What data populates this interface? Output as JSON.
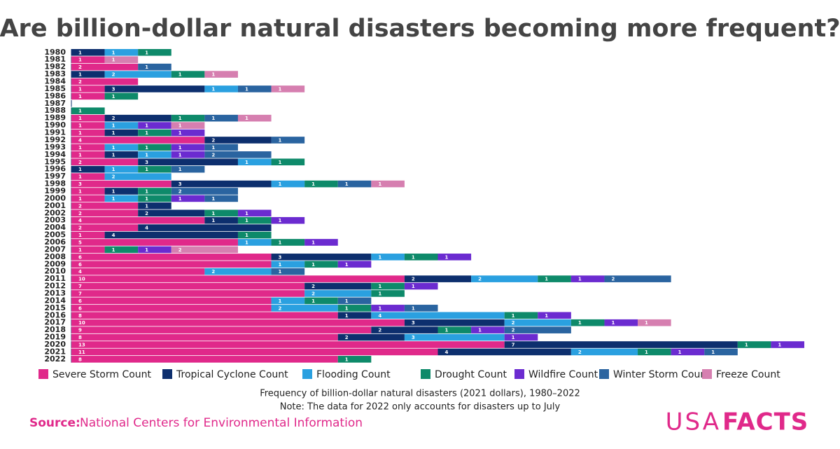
{
  "chart_data": {
    "type": "stacked-bar-horizontal",
    "title": "Are billion-dollar natural disasters becoming more frequent?",
    "categories": [
      "1980",
      "1981",
      "1982",
      "1983",
      "1984",
      "1985",
      "1986",
      "1987",
      "1988",
      "1989",
      "1990",
      "1991",
      "1992",
      "1993",
      "1994",
      "1995",
      "1996",
      "1997",
      "1998",
      "1999",
      "2000",
      "2001",
      "2002",
      "2003",
      "2004",
      "2005",
      "2006",
      "2007",
      "2008",
      "2009",
      "2010",
      "2011",
      "2012",
      "2013",
      "2014",
      "2015",
      "2016",
      "2017",
      "2018",
      "2019",
      "2020",
      "2021",
      "2022"
    ],
    "series": [
      {
        "name": "Severe Storm Count",
        "color": "#e0298a",
        "values": [
          0,
          1,
          2,
          0,
          2,
          1,
          1,
          0,
          0,
          1,
          1,
          1,
          4,
          1,
          1,
          2,
          0,
          1,
          3,
          1,
          1,
          2,
          2,
          4,
          2,
          1,
          5,
          1,
          6,
          6,
          4,
          10,
          7,
          7,
          6,
          6,
          8,
          10,
          9,
          8,
          13,
          11,
          8
        ]
      },
      {
        "name": "Tropical Cyclone Count",
        "color": "#0d2f6e",
        "values": [
          1,
          0,
          0,
          1,
          0,
          3,
          0,
          0,
          0,
          2,
          0,
          1,
          2,
          0,
          1,
          3,
          1,
          0,
          3,
          1,
          0,
          1,
          2,
          1,
          4,
          4,
          0,
          0,
          3,
          0,
          0,
          2,
          2,
          0,
          0,
          0,
          1,
          3,
          2,
          2,
          7,
          4,
          0
        ]
      },
      {
        "name": "Flooding Count",
        "color": "#2aa0e0",
        "values": [
          1,
          0,
          0,
          2,
          0,
          1,
          0,
          0,
          0,
          0,
          1,
          0,
          0,
          1,
          1,
          1,
          1,
          2,
          1,
          0,
          1,
          0,
          0,
          0,
          0,
          0,
          1,
          0,
          1,
          1,
          2,
          2,
          0,
          2,
          1,
          2,
          4,
          2,
          0,
          3,
          0,
          2,
          0
        ]
      },
      {
        "name": "Drought Count",
        "color": "#0e8a6a",
        "values": [
          1,
          0,
          0,
          1,
          0,
          0,
          1,
          0,
          1,
          1,
          0,
          1,
          0,
          1,
          0,
          1,
          1,
          0,
          1,
          1,
          1,
          0,
          1,
          1,
          0,
          1,
          1,
          1,
          1,
          1,
          0,
          1,
          1,
          1,
          1,
          1,
          1,
          1,
          1,
          0,
          1,
          1,
          1
        ]
      },
      {
        "name": "Wildfire Count",
        "color": "#6b2bd0",
        "values": [
          0,
          0,
          0,
          0,
          0,
          0,
          0,
          0,
          0,
          0,
          1,
          1,
          0,
          1,
          1,
          0,
          0,
          0,
          0,
          0,
          1,
          0,
          1,
          1,
          0,
          0,
          1,
          1,
          1,
          1,
          0,
          1,
          1,
          0,
          0,
          1,
          1,
          1,
          1,
          1,
          1,
          1,
          0
        ]
      },
      {
        "name": "Winter Storm Count",
        "color": "#2a64a0",
        "values": [
          0,
          0,
          1,
          0,
          0,
          1,
          0,
          0,
          0,
          1,
          0,
          0,
          1,
          1,
          2,
          0,
          1,
          0,
          1,
          2,
          1,
          0,
          0,
          0,
          0,
          0,
          0,
          0,
          0,
          0,
          1,
          2,
          0,
          0,
          1,
          1,
          0,
          0,
          2,
          0,
          0,
          1,
          0
        ]
      },
      {
        "name": "Freeze Count",
        "color": "#d67fb0",
        "values": [
          0,
          1,
          0,
          1,
          0,
          1,
          0,
          0,
          0,
          1,
          1,
          0,
          0,
          0,
          0,
          0,
          0,
          0,
          1,
          0,
          0,
          0,
          0,
          0,
          0,
          0,
          0,
          2,
          0,
          0,
          0,
          0,
          0,
          0,
          0,
          0,
          0,
          1,
          0,
          0,
          0,
          0,
          0
        ]
      }
    ],
    "xlim": [
      0,
      22
    ],
    "notes": [
      "Frequency of billion-dollar natural disasters (2021 dollars), 1980–2022",
      "Note: The data for 2022 only accounts for disasters up to July"
    ],
    "source_label": "Source:",
    "source": "National Centers for Environmental Information",
    "brand_light": "USA",
    "brand_bold": "FACTS"
  }
}
